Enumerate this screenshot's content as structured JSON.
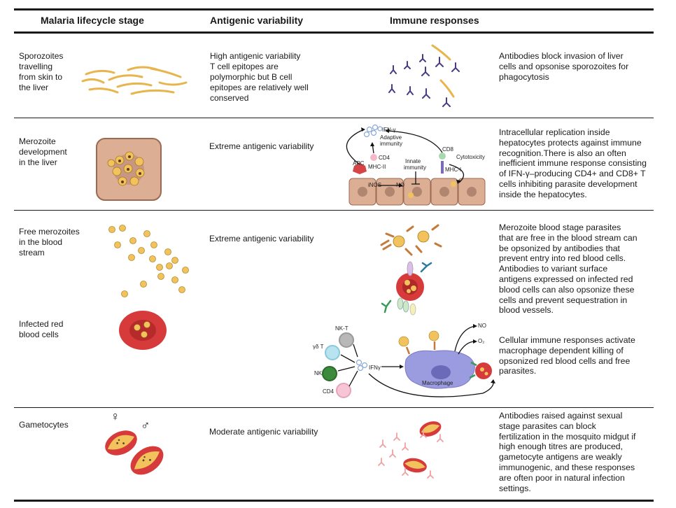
{
  "header": {
    "col_stage": "Malaria lifecycle stage",
    "col_variability": "Antigenic variability",
    "col_immune": "Immune responses"
  },
  "rows": [
    {
      "stage": "Sporozoites\ntravelling\nfrom skin to\nthe liver",
      "variability": "High antigenic variability\nT cell epitopes are\npolymorphic but B cell\nepitopes are relatively well\nconserved",
      "response": "Antibodies block invasion of liver\ncells and opsonise sporozoites for\nphagocytosis"
    },
    {
      "stage": "Merozoite\ndevelopment\nin the liver",
      "variability": "Extreme antigenic variability",
      "response": "Intracellular replication inside\nhepatocytes protects against immune\nrecognition.There is also an often\ninefficient immune response consisting\nof IFN-γ–producing CD4+ and CD8+ T\ncells inhibiting parasite development\ninside the hepatocytes."
    },
    {
      "stage": "Free merozoites\nin the blood\nstream",
      "variability": "Extreme antigenic variability",
      "response": "Merozoite blood stage parasites\nthat are free in the blood stream can\nbe opsonized by antibodies that\nprevent entry into red blood cells.\nAntibodies to variant surface\nantigens expressed on infected red\nblood cells can also opsonize these\ncells and prevent sequestration in\nblood vessels."
    },
    {
      "stage": "Infected red\nblood cells",
      "response": "Cellular immune responses activate\nmacrophage dependent killing of\nopsonized red blood cells and free\nparasites."
    },
    {
      "stage": "Gametocytes",
      "variability": "Moderate antigenic variability",
      "response": "Antibodies raised against sexual\nstage parasites can block\nfertilization in the mosquito midgut if\nhigh enough titres are produced,\ngametocyte antigens are weakly\nimmunogenic, and these responses\nare often poor in natural infection\nsettings."
    }
  ],
  "liver_diagram": {
    "ifn": "IFN-γ",
    "adaptive": "Adaptive\nimmunity",
    "cd4": "CD4",
    "apc": "APC",
    "mhc2": "MHC-II",
    "innate": "Innate\nimmunity",
    "cd8": "CD8",
    "cytotoxicity": "Cytotoxicity",
    "mhc1": "MHC-I",
    "inos": "iNOS",
    "no": "NO"
  },
  "macrophage_diagram": {
    "nkt": "NK-T",
    "gdt": "γδ T",
    "nk": "NK",
    "cd4": "CD4",
    "ifn": "IFNγ",
    "macrophage": "Macrophage",
    "no": "NO",
    "o2": "O₂"
  },
  "gametocyte_symbols": {
    "female": "♀",
    "male": "♂"
  },
  "colors": {
    "rule": "#1a1a1a",
    "parasite": "#f2c35c",
    "rbc": "#d63a3a",
    "hepatocyte": "#d9a98b",
    "antibody": "#4a3a86",
    "macrophage": "#9b9be0",
    "pink_antibody": "#f0a0a0"
  }
}
